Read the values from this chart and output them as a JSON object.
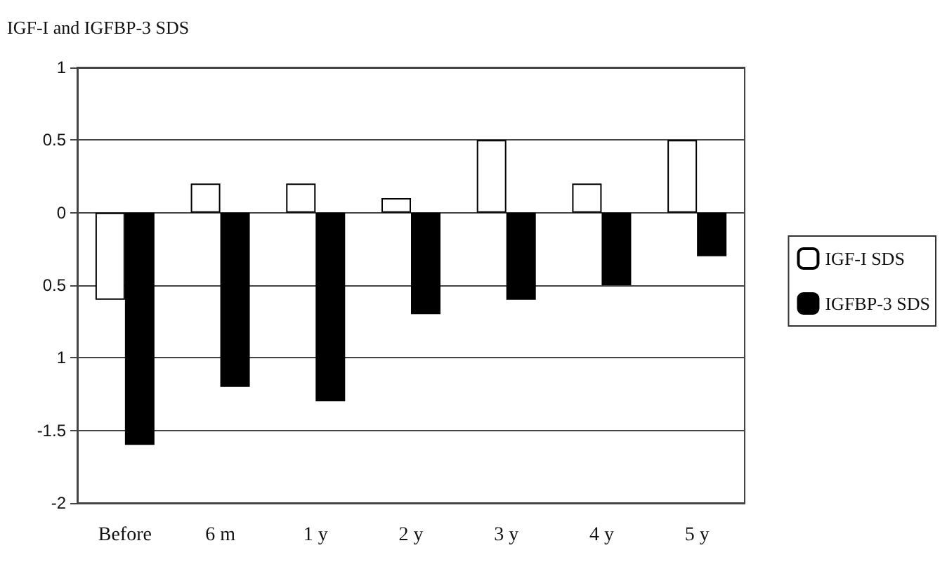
{
  "chart_data": {
    "type": "bar",
    "ylabel": "IGF-I and IGFBP-3 SDS",
    "categories": [
      "Before",
      "6 m",
      "1 y",
      "2 y",
      "3 y",
      "4 y",
      "5 y"
    ],
    "series": [
      {
        "name": "IGF-I SDS",
        "color": "#ffffff",
        "values": [
          -0.6,
          0.2,
          0.2,
          0.1,
          0.5,
          0.2,
          0.5
        ]
      },
      {
        "name": "IGFBP-3 SDS",
        "color": "#000000",
        "values": [
          -1.6,
          -1.2,
          -1.3,
          -0.7,
          -0.6,
          -0.5,
          -0.3
        ]
      }
    ],
    "ylim": [
      -2,
      1
    ],
    "yticks": [
      {
        "value": -2,
        "label": "-2"
      },
      {
        "value": -1.5,
        "label": "-1.5"
      },
      {
        "value": -1,
        "label": "1"
      },
      {
        "value": -0.5,
        "label": "0.5"
      },
      0,
      0.5,
      1
    ],
    "grid": "y",
    "legend": "right"
  }
}
